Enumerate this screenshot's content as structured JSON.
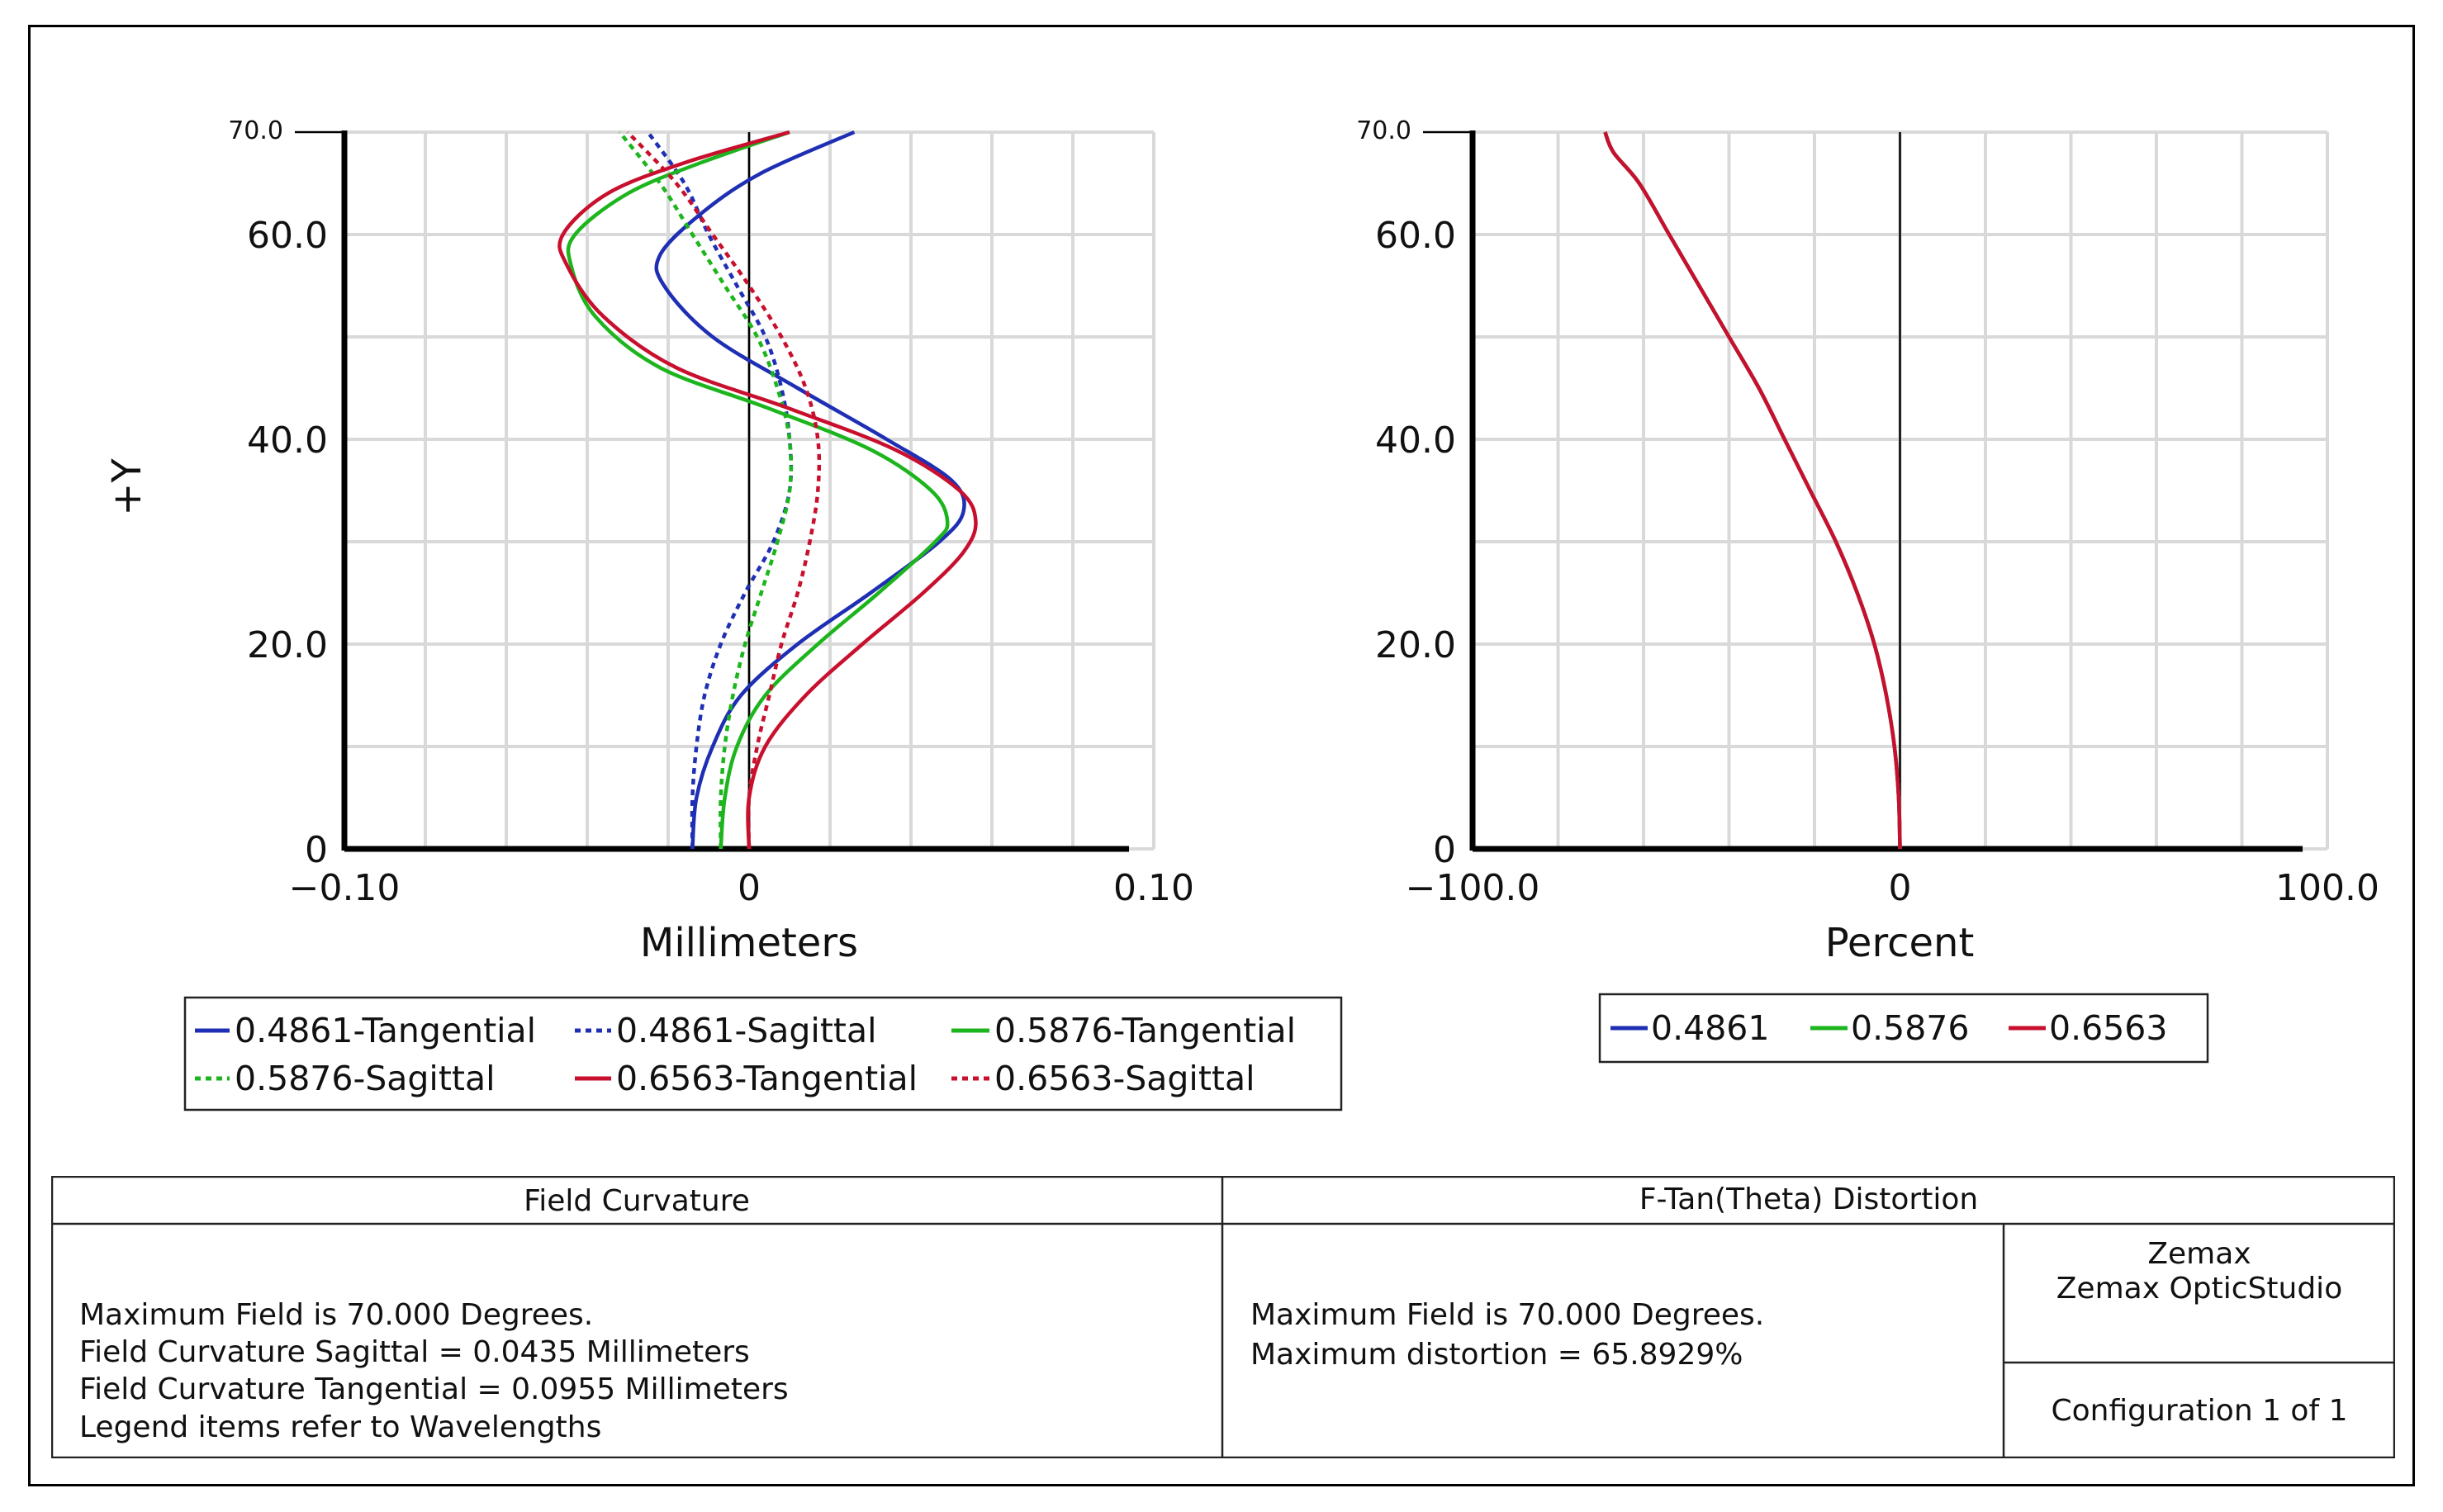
{
  "chart_data": [
    {
      "type": "line",
      "title": "Field Curvature",
      "xlabel": "Millimeters",
      "ylabel": "+Y",
      "xlim": [
        -0.1,
        0.1
      ],
      "ylim": [
        0,
        70
      ],
      "grid": true,
      "x_tick_labels": [
        "−0.10",
        "0",
        "0.10"
      ],
      "y_tick_labels": [
        "0",
        "20.0",
        "40.0",
        "60.0",
        "70.0"
      ],
      "x_tick_values": [
        -0.1,
        0,
        0.1
      ],
      "y_tick_values": [
        0,
        20,
        40,
        60,
        70
      ],
      "legend_position": "bottom",
      "series": [
        {
          "name": "0.4861-Tangential",
          "color": "#1f2fb4",
          "dash": "solid",
          "points": [
            [
              -0.014,
              0
            ],
            [
              -0.013,
              5
            ],
            [
              -0.009,
              10
            ],
            [
              -0.002,
              15
            ],
            [
              0.012,
              20
            ],
            [
              0.03,
              25
            ],
            [
              0.047,
              30
            ],
            [
              0.053,
              33
            ],
            [
              0.05,
              36
            ],
            [
              0.034,
              40
            ],
            [
              0.012,
              45
            ],
            [
              -0.009,
              50
            ],
            [
              -0.021,
              55
            ],
            [
              -0.022,
              58
            ],
            [
              -0.012,
              62
            ],
            [
              0.003,
              66
            ],
            [
              0.026,
              70
            ]
          ]
        },
        {
          "name": "0.4861-Sagittal",
          "color": "#1f2fb4",
          "dash": "dotted",
          "points": [
            [
              -0.014,
              0
            ],
            [
              -0.014,
              5
            ],
            [
              -0.013,
              10
            ],
            [
              -0.011,
              15
            ],
            [
              -0.007,
              20
            ],
            [
              -0.001,
              25
            ],
            [
              0.006,
              30
            ],
            [
              0.01,
              35
            ],
            [
              0.01,
              40
            ],
            [
              0.008,
              45
            ],
            [
              0.004,
              50
            ],
            [
              -0.003,
              55
            ],
            [
              -0.01,
              60
            ],
            [
              -0.016,
              65
            ],
            [
              -0.025,
              70
            ]
          ]
        },
        {
          "name": "0.5876-Tangential",
          "color": "#1db51d",
          "dash": "solid",
          "points": [
            [
              -0.007,
              0
            ],
            [
              -0.006,
              5
            ],
            [
              -0.003,
              10
            ],
            [
              0.004,
              15
            ],
            [
              0.017,
              20
            ],
            [
              0.032,
              25
            ],
            [
              0.046,
              30
            ],
            [
              0.049,
              32
            ],
            [
              0.045,
              35
            ],
            [
              0.03,
              39
            ],
            [
              0.005,
              43
            ],
            [
              -0.022,
              47
            ],
            [
              -0.038,
              52
            ],
            [
              -0.044,
              57
            ],
            [
              -0.043,
              60
            ],
            [
              -0.03,
              64
            ],
            [
              -0.012,
              67
            ],
            [
              0.01,
              70
            ]
          ]
        },
        {
          "name": "0.5876-Sagittal",
          "color": "#1db51d",
          "dash": "dotted",
          "points": [
            [
              -0.007,
              0
            ],
            [
              -0.007,
              5
            ],
            [
              -0.006,
              10
            ],
            [
              -0.004,
              15
            ],
            [
              -0.001,
              20
            ],
            [
              0.003,
              25
            ],
            [
              0.007,
              30
            ],
            [
              0.01,
              35
            ],
            [
              0.01,
              40
            ],
            [
              0.007,
              45
            ],
            [
              0.002,
              50
            ],
            [
              -0.006,
              55
            ],
            [
              -0.014,
              60
            ],
            [
              -0.022,
              65
            ],
            [
              -0.032,
              70
            ]
          ]
        },
        {
          "name": "0.6563-Tangential",
          "color": "#c8102e",
          "dash": "solid",
          "points": [
            [
              0.0,
              0
            ],
            [
              0.0,
              5
            ],
            [
              0.004,
              10
            ],
            [
              0.014,
              15
            ],
            [
              0.028,
              20
            ],
            [
              0.043,
              25
            ],
            [
              0.053,
              29
            ],
            [
              0.056,
              32
            ],
            [
              0.052,
              35
            ],
            [
              0.036,
              39
            ],
            [
              0.01,
              43
            ],
            [
              -0.018,
              47
            ],
            [
              -0.036,
              52
            ],
            [
              -0.045,
              57
            ],
            [
              -0.046,
              60
            ],
            [
              -0.035,
              64
            ],
            [
              -0.016,
              67
            ],
            [
              0.01,
              70
            ]
          ]
        },
        {
          "name": "0.6563-Sagittal",
          "color": "#c8102e",
          "dash": "dotted",
          "points": [
            [
              0.0,
              0
            ],
            [
              0.0,
              5
            ],
            [
              0.002,
              10
            ],
            [
              0.005,
              15
            ],
            [
              0.008,
              20
            ],
            [
              0.012,
              25
            ],
            [
              0.015,
              30
            ],
            [
              0.017,
              35
            ],
            [
              0.017,
              40
            ],
            [
              0.014,
              45
            ],
            [
              0.008,
              50
            ],
            [
              0.0,
              55
            ],
            [
              -0.009,
              60
            ],
            [
              -0.018,
              65
            ],
            [
              -0.03,
              70
            ]
          ]
        }
      ]
    },
    {
      "type": "line",
      "title": "F-Tan(Theta) Distortion",
      "xlabel": "Percent",
      "ylabel": "",
      "xlim": [
        -100,
        100
      ],
      "ylim": [
        0,
        70
      ],
      "grid": true,
      "x_tick_labels": [
        "−100.0",
        "0",
        "100.0"
      ],
      "y_tick_labels": [
        "0",
        "20.0",
        "40.0",
        "60.0",
        "70.0"
      ],
      "x_tick_values": [
        -100,
        0,
        100
      ],
      "y_tick_values": [
        0,
        20,
        40,
        60,
        70
      ],
      "legend_position": "bottom",
      "series": [
        {
          "name": "0.4861",
          "color": "#1f2fb4",
          "dash": "solid",
          "points": [
            [
              0,
              0
            ],
            [
              -0.3,
              5
            ],
            [
              -1.3,
              10
            ],
            [
              -3.2,
              15
            ],
            [
              -6,
              20
            ],
            [
              -10,
              25
            ],
            [
              -15,
              30
            ],
            [
              -21,
              35
            ],
            [
              -27,
              40
            ],
            [
              -33,
              45
            ],
            [
              -40,
              50
            ],
            [
              -47,
              55
            ],
            [
              -54,
              60
            ],
            [
              -61,
              65
            ],
            [
              -67,
              68
            ],
            [
              -69,
              70
            ]
          ]
        },
        {
          "name": "0.5876",
          "color": "#1db51d",
          "dash": "solid",
          "points": [
            [
              0,
              0
            ],
            [
              -0.3,
              5
            ],
            [
              -1.3,
              10
            ],
            [
              -3.2,
              15
            ],
            [
              -6,
              20
            ],
            [
              -10,
              25
            ],
            [
              -15,
              30
            ],
            [
              -21,
              35
            ],
            [
              -27,
              40
            ],
            [
              -33,
              45
            ],
            [
              -40,
              50
            ],
            [
              -47,
              55
            ],
            [
              -54,
              60
            ],
            [
              -61,
              65
            ],
            [
              -67,
              68
            ],
            [
              -69,
              70
            ]
          ]
        },
        {
          "name": "0.6563",
          "color": "#c8102e",
          "dash": "solid",
          "points": [
            [
              0,
              0
            ],
            [
              -0.3,
              5
            ],
            [
              -1.3,
              10
            ],
            [
              -3.2,
              15
            ],
            [
              -6,
              20
            ],
            [
              -10,
              25
            ],
            [
              -15,
              30
            ],
            [
              -21,
              35
            ],
            [
              -27,
              40
            ],
            [
              -33,
              45
            ],
            [
              -40,
              50
            ],
            [
              -47,
              55
            ],
            [
              -54,
              60
            ],
            [
              -61,
              65
            ],
            [
              -67,
              68
            ],
            [
              -69,
              70
            ]
          ]
        }
      ]
    }
  ],
  "left_legend": [
    {
      "label": "0.4861-Tangential",
      "color": "#1f2fb4",
      "dash": "solid"
    },
    {
      "label": "0.4861-Sagittal",
      "color": "#1f2fb4",
      "dash": "dotted"
    },
    {
      "label": "0.5876-Tangential",
      "color": "#1db51d",
      "dash": "solid"
    },
    {
      "label": "0.5876-Sagittal",
      "color": "#1db51d",
      "dash": "dotted"
    },
    {
      "label": "0.6563-Tangential",
      "color": "#c8102e",
      "dash": "solid"
    },
    {
      "label": "0.6563-Sagittal",
      "color": "#c8102e",
      "dash": "dotted"
    }
  ],
  "right_legend": [
    {
      "label": "0.4861",
      "color": "#1f2fb4"
    },
    {
      "label": "0.5876",
      "color": "#1db51d"
    },
    {
      "label": "0.6563",
      "color": "#c8102e"
    }
  ],
  "info": {
    "left_title": "Field Curvature",
    "right_title": "F-Tan(Theta) Distortion",
    "left_lines": [
      "Maximum Field is 70.000 Degrees.",
      "Field Curvature Sagittal = 0.0435 Millimeters",
      "Field Curvature Tangential = 0.0955 Millimeters",
      "Legend items refer to Wavelengths"
    ],
    "right_lines": [
      "Maximum Field is 70.000 Degrees.",
      "Maximum distortion = 65.8929%"
    ],
    "company": "Zemax",
    "product": "Zemax OpticStudio",
    "configuration": "Configuration 1 of 1"
  }
}
